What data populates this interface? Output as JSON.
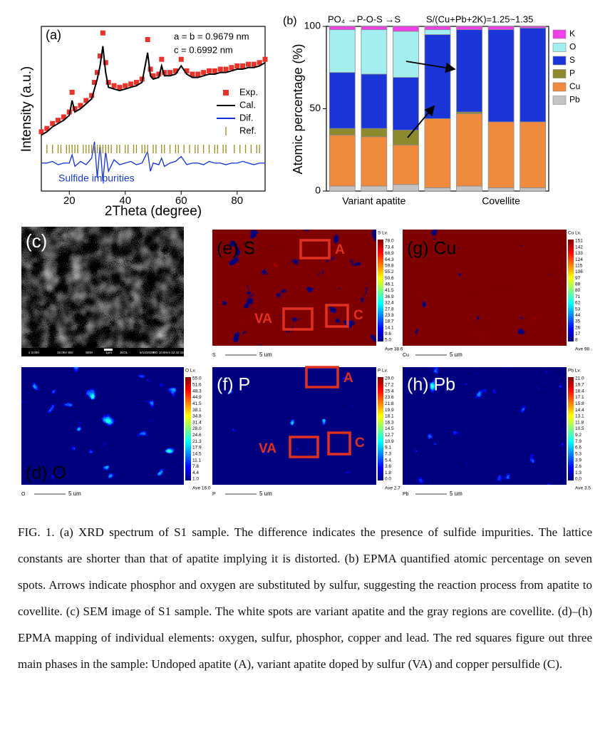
{
  "chart_data": [
    {
      "type": "line",
      "panel": "(a)",
      "xlabel": "2Theta (degree)",
      "ylabel": "Intensity (a.u.)",
      "annotations": [
        "a = b = 0.9679 nm",
        "c = 0.6992 nm",
        "Sulfide impurities"
      ],
      "xlim": [
        10,
        90
      ],
      "xticks": [
        20,
        40,
        60,
        80
      ],
      "ylim": [
        0,
        100
      ],
      "x": [
        10,
        12,
        14,
        16,
        18,
        20,
        21,
        22,
        24,
        26,
        28,
        29,
        30,
        31,
        32,
        33,
        34,
        36,
        38,
        40,
        42,
        44,
        46,
        48,
        49,
        50,
        52,
        53,
        54,
        56,
        58,
        60,
        62,
        64,
        66,
        68,
        70,
        72,
        74,
        76,
        78,
        80,
        82,
        84,
        86,
        88,
        90
      ],
      "series": [
        {
          "name": "Exp.",
          "color": "#e8322a",
          "style": "markers",
          "values": [
            36,
            38,
            41,
            43,
            45,
            48,
            60,
            50,
            52,
            55,
            58,
            66,
            72,
            82,
            96,
            78,
            66,
            64,
            63,
            64,
            65,
            66,
            68,
            92,
            74,
            70,
            71,
            80,
            72,
            72,
            73,
            80,
            73,
            71,
            71,
            72,
            73,
            73,
            74,
            74,
            75,
            76,
            76,
            77,
            77,
            78,
            80
          ]
        },
        {
          "name": "Cal.",
          "color": "#000000",
          "style": "line",
          "values": [
            34,
            36,
            39,
            41,
            43,
            46,
            55,
            48,
            50,
            53,
            56,
            62,
            68,
            76,
            88,
            72,
            63,
            62,
            61,
            62,
            63,
            64,
            66,
            84,
            70,
            68,
            69,
            76,
            70,
            70,
            71,
            76,
            71,
            69,
            69,
            70,
            71,
            71,
            72,
            72,
            73,
            74,
            74,
            75,
            75,
            76,
            78
          ]
        },
        {
          "name": "Dif.",
          "color": "#1030e0",
          "style": "line",
          "values": [
            17,
            17,
            18,
            16,
            17,
            17,
            22,
            15,
            18,
            16,
            20,
            30,
            8,
            28,
            6,
            24,
            12,
            19,
            16,
            17,
            18,
            16,
            17,
            24,
            12,
            17,
            16,
            20,
            15,
            17,
            18,
            21,
            16,
            17,
            17,
            16,
            18,
            17,
            17,
            16,
            17,
            17,
            18,
            17,
            16,
            17,
            17
          ]
        },
        {
          "name": "Ref.",
          "color": "#9a8a20",
          "style": "ticks",
          "x": [
            12,
            14,
            16,
            17,
            19,
            20,
            21,
            22,
            23,
            25,
            26,
            27,
            28,
            29,
            30,
            31,
            32,
            33,
            34,
            35,
            37,
            38,
            40,
            41,
            43,
            44,
            46,
            47,
            48,
            50,
            51,
            53,
            54,
            56,
            58,
            59,
            61,
            63,
            65,
            66,
            68,
            70,
            72,
            73,
            75,
            76,
            79,
            81,
            83,
            85,
            87,
            88
          ]
        }
      ]
    },
    {
      "type": "stacked-bar",
      "panel": "(b)",
      "ylabel": "Atomic percentage (%)",
      "annotations": [
        "PO₄ →P-O-S →S",
        "S/(Cu+Pb+2K)=1.25~1.35"
      ],
      "categories": [
        null,
        null,
        null,
        null,
        null,
        null,
        null
      ],
      "group_labels": [
        "Variant apatite",
        "Covellite"
      ],
      "ylim": [
        0,
        100
      ],
      "yticks": [
        0,
        50,
        100
      ],
      "series": [
        {
          "name": "Pb",
          "color": "#c4c4c4",
          "values": [
            3,
            3,
            4,
            2,
            3,
            2,
            2
          ]
        },
        {
          "name": "Cu",
          "color": "#f08a3c",
          "values": [
            31,
            30,
            24,
            42,
            44,
            40,
            40
          ]
        },
        {
          "name": "P",
          "color": "#8c8a2c",
          "values": [
            4,
            5,
            9,
            0,
            1,
            0,
            0
          ]
        },
        {
          "name": "S",
          "color": "#1a36d8",
          "values": [
            34,
            33,
            32,
            51,
            50,
            56,
            57
          ]
        },
        {
          "name": "O",
          "color": "#a2eef0",
          "values": [
            26,
            27,
            28,
            3,
            0,
            0,
            0
          ]
        },
        {
          "name": "K",
          "color": "#ee3fe8",
          "values": [
            2,
            2,
            3,
            2,
            2,
            2,
            1
          ]
        }
      ]
    }
  ],
  "sem": {
    "label": "(c)",
    "info": [
      "x 3,000",
      "15.0kV SEI",
      "SEM",
      "1μm",
      "JEOL",
      "6/14/2024",
      "WD 10.8mm 12:42:15"
    ]
  },
  "maps": [
    {
      "label": "(e) S",
      "element": "S",
      "scale_title": "S Lv.",
      "scale_labels": [
        "78.0",
        "73.4",
        "68.9",
        "64.3",
        "59.8",
        "55.2",
        "50.6",
        "46.1",
        "41.5",
        "36.9",
        "32.4",
        "27.8",
        "23.3",
        "18.7",
        "14.1",
        "9.6",
        "5.0"
      ],
      "average": "Ave 38.6",
      "scale_bar": "5 um",
      "boxes": [
        "A",
        "VA",
        "C"
      ]
    },
    {
      "label": "(g) Cu",
      "element": "Cu",
      "scale_title": "Cu Lv.",
      "scale_labels": [
        "151",
        "142",
        "133",
        "124",
        "115",
        "106",
        "97",
        "88",
        "80",
        "71",
        "62",
        "53",
        "44",
        "35",
        "26",
        "17",
        "8"
      ],
      "average": "Ave 98",
      "scale_bar": "5 um"
    },
    {
      "label": "(d) O",
      "element": "O",
      "scale_title": "O Lv.",
      "scale_labels": [
        "55.0",
        "51.6",
        "48.3",
        "44.9",
        "41.5",
        "38.1",
        "34.8",
        "31.4",
        "28.0",
        "24.6",
        "21.3",
        "17.9",
        "14.5",
        "11.1",
        "7.8",
        "4.4",
        "1.0"
      ],
      "average": "Ave 16.0",
      "scale_bar": "5 um"
    },
    {
      "label": "(f) P",
      "element": "P",
      "scale_title": "P Lv.",
      "scale_labels": [
        "29.0",
        "27.2",
        "25.4",
        "23.6",
        "21.8",
        "19.9",
        "18.1",
        "16.3",
        "14.5",
        "12.7",
        "10.9",
        "9.1",
        "7.3",
        "5.4",
        "3.6",
        "1.8",
        "0.0"
      ],
      "average": "Ave 2.7",
      "scale_bar": "5 um",
      "boxes": [
        "A",
        "VA",
        "C"
      ]
    },
    {
      "label": "(h) Pb",
      "element": "Pb",
      "scale_title": "Pb Lv.",
      "scale_labels": [
        "21.0",
        "19.7",
        "18.4",
        "17.1",
        "15.8",
        "14.4",
        "13.1",
        "11.8",
        "10.5",
        "9.2",
        "7.9",
        "6.6",
        "5.3",
        "3.9",
        "2.6",
        "1.3",
        "0.0"
      ],
      "average": "Ave 3.5",
      "scale_bar": "5 um"
    }
  ],
  "caption": "FIG. 1. (a) XRD spectrum of S1 sample. The difference indicates the presence of sulfide impurities. The lattice constants are shorter than that of apatite implying it is distorted. (b) EPMA quantified atomic percentage on seven spots. Arrows indicate phosphor and oxygen are substituted by sulfur, suggesting the reaction process from apatite to covellite. (c) SEM image of S1 sample. The white spots are variant apatite and the gray regions are covellite. (d)–(h) EPMA mapping of individual elements: oxygen, sulfur, phosphor, copper and lead. The red squares figure out three main phases in the sample: Undoped apatite (A), variant apatite doped by sulfur (VA) and copper persulfide (C)."
}
